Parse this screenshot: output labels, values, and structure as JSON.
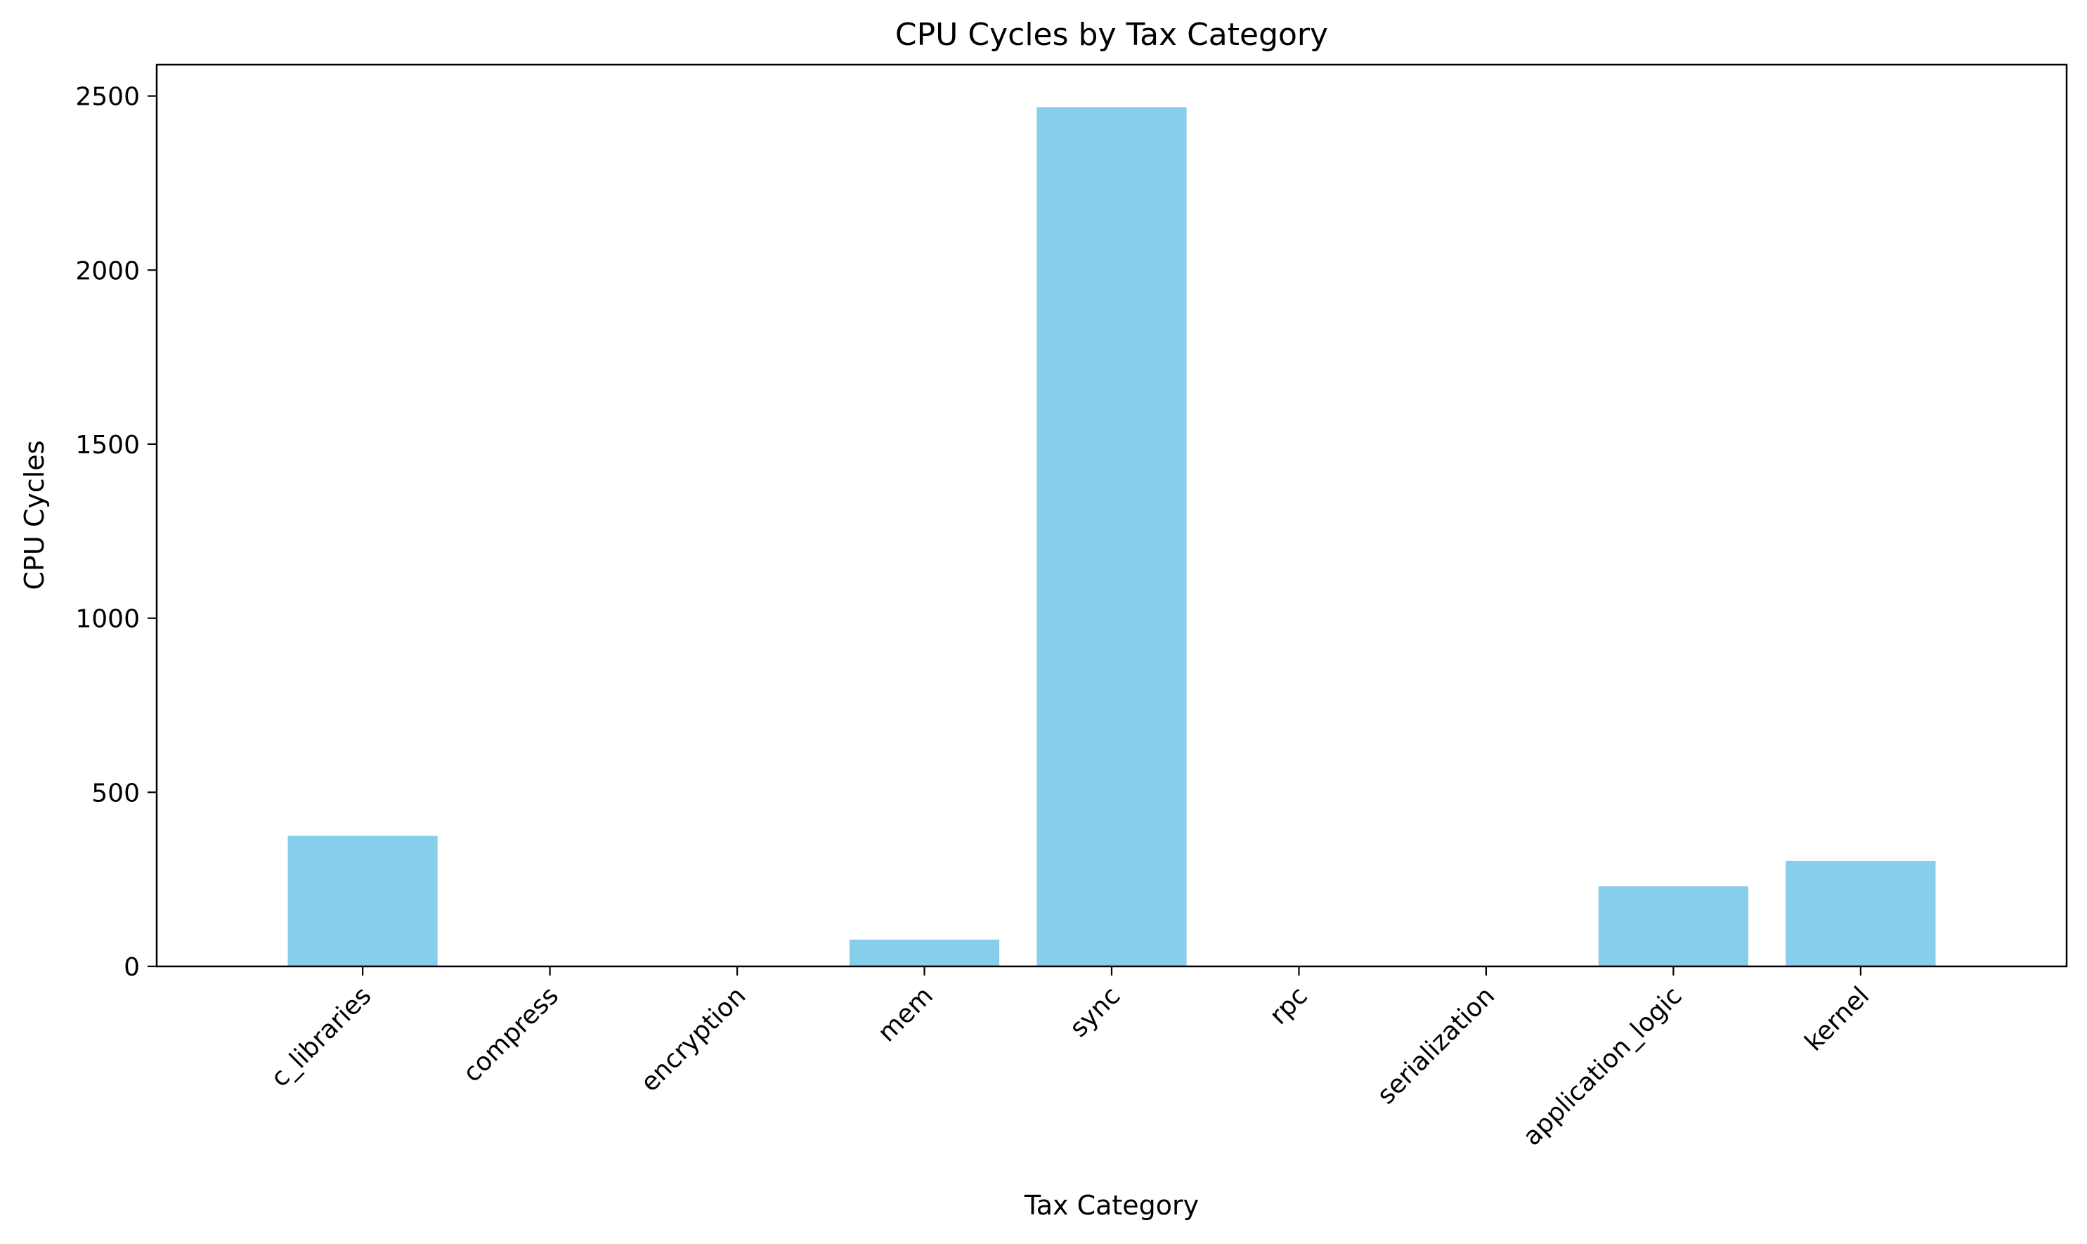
{
  "chart_data": {
    "type": "bar",
    "title": "CPU Cycles by Tax Category",
    "xlabel": "Tax Category",
    "ylabel": "CPU Cycles",
    "categories": [
      "c_libraries",
      "compress",
      "encryption",
      "mem",
      "sync",
      "rpc",
      "serialization",
      "application_logic",
      "kernel"
    ],
    "values": [
      375,
      0,
      0,
      77,
      2468,
      0,
      0,
      230,
      303
    ],
    "ylim": [
      0,
      2590
    ],
    "yticks": [
      0,
      500,
      1000,
      1500,
      2000,
      2500
    ],
    "bar_color": "#87ceeb",
    "grid": false,
    "legend": "none",
    "xtick_rotation_deg": 45
  }
}
